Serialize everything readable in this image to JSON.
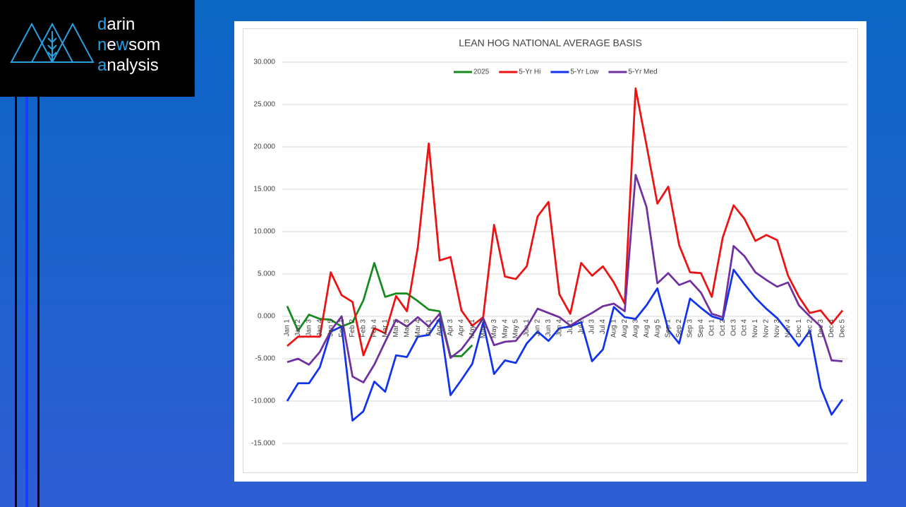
{
  "logo": {
    "lines": [
      [
        "d",
        "arin"
      ],
      [
        "n",
        "e",
        "w",
        "som"
      ],
      [
        "a",
        "nalysis"
      ]
    ]
  },
  "chart_data": {
    "type": "line",
    "title": "LEAN HOG NATIONAL AVERAGE BASIS",
    "categories": [
      "Jan 1",
      "Jan 2",
      "Jan 3",
      "Jan 4",
      "Jan 5",
      "Feb 1",
      "Feb 2",
      "Feb 3",
      "Feb 4",
      "Mar 1",
      "Mar 2",
      "Mar 3",
      "Mar 4",
      "Apr 1",
      "Apr 2",
      "Apr 3",
      "Apr 4",
      "May 1",
      "May 2",
      "May 3",
      "May 4",
      "May 5",
      "Jun 1",
      "Jun 2",
      "Jun 3",
      "Jun 4",
      "Jul 1",
      "Jul 2",
      "Jul 3",
      "Jul 4",
      "Aug 1",
      "Aug 2",
      "Aug 3",
      "Aug 4",
      "Aug 5",
      "Sep 1",
      "Sep 2",
      "Sep 3",
      "Sep 4",
      "Oct 1",
      "Oct 2",
      "Oct 3",
      "Oct 4",
      "Nov 1",
      "Nov 2",
      "Nov 3",
      "Nov 4",
      "Dec 1",
      "Dec 2",
      "Dec 3",
      "Dec 4",
      "Dec 5"
    ],
    "series": [
      {
        "name": "2025",
        "color": "#158a1e",
        "values": [
          1.2,
          -1.7,
          0.2,
          -0.3,
          -0.4,
          -1.2,
          -0.7,
          1.9,
          6.3,
          2.3,
          2.7,
          2.7,
          1.8,
          0.8,
          0.6,
          -4.7,
          -4.7,
          -3.4,
          null,
          null,
          null,
          null,
          null,
          null,
          null,
          null,
          null,
          null,
          null,
          null,
          null,
          null,
          null,
          null,
          null,
          null,
          null,
          null,
          null,
          null,
          null,
          null,
          null,
          null,
          null,
          null,
          null,
          null,
          null,
          null,
          null,
          null
        ]
      },
      {
        "name": "5-Yr Hi",
        "color": "#ee1111",
        "values": [
          -3.5,
          -2.4,
          -2.4,
          -2.4,
          5.2,
          2.5,
          1.7,
          -4.6,
          -1.4,
          -2.0,
          2.4,
          0.6,
          8.2,
          20.4,
          6.6,
          7.0,
          0.7,
          -1.1,
          -0.1,
          10.8,
          4.7,
          4.4,
          5.9,
          11.8,
          13.5,
          2.6,
          0.3,
          6.3,
          4.8,
          5.9,
          4.0,
          1.5,
          26.9,
          20.2,
          13.3,
          15.3,
          8.4,
          5.2,
          5.1,
          2.3,
          9.3,
          13.1,
          11.5,
          8.9,
          9.6,
          9.0,
          4.8,
          2.3,
          0.4,
          0.7,
          -0.9,
          0.7
        ]
      },
      {
        "name": "5-Yr Low",
        "color": "#1133ee",
        "values": [
          -10.0,
          -7.9,
          -7.9,
          -6.0,
          -1.8,
          -1.2,
          -12.3,
          -11.2,
          -7.7,
          -8.9,
          -4.6,
          -4.8,
          -2.4,
          -2.2,
          -0.3,
          -9.3,
          -7.5,
          -5.6,
          -0.7,
          -6.8,
          -5.2,
          -5.5,
          -3.2,
          -1.8,
          -2.9,
          -1.4,
          -1.2,
          -0.7,
          -5.3,
          -3.9,
          1.1,
          -0.1,
          -0.3,
          1.3,
          3.3,
          -1.6,
          -3.2,
          2.1,
          1.0,
          0.0,
          -0.4,
          5.5,
          3.8,
          2.2,
          0.9,
          -0.2,
          -1.8,
          -3.5,
          -1.7,
          -8.4,
          -11.6,
          -9.8
        ]
      },
      {
        "name": "5-Yr Med",
        "color": "#7030a0",
        "values": [
          -5.4,
          -5.0,
          -5.7,
          -4.2,
          -1.7,
          0.0,
          -7.1,
          -7.8,
          -5.7,
          -3.0,
          -0.4,
          -1.2,
          -0.1,
          -1.2,
          0.3,
          -4.9,
          -3.9,
          -2.2,
          -0.2,
          -3.4,
          -3.0,
          -2.9,
          -1.3,
          0.9,
          0.4,
          -0.1,
          -1.1,
          -0.3,
          0.4,
          1.2,
          1.5,
          0.6,
          16.7,
          12.9,
          3.9,
          5.1,
          3.7,
          4.2,
          2.8,
          0.3,
          -0.1,
          8.3,
          7.1,
          5.2,
          4.3,
          3.5,
          4.0,
          1.3,
          0.0,
          -1.2,
          -5.2,
          -5.3
        ]
      }
    ],
    "ylim": [
      -18,
      32
    ],
    "yticks": [
      {
        "value": -15,
        "label": "-15.000"
      },
      {
        "value": -10,
        "label": "-10.000"
      },
      {
        "value": -5,
        "label": "-5.000"
      },
      {
        "value": 0,
        "label": "0.000"
      },
      {
        "value": 5,
        "label": "5.000"
      },
      {
        "value": 10,
        "label": "10.000"
      },
      {
        "value": 15,
        "label": "15.000"
      },
      {
        "value": 20,
        "label": "20.000"
      },
      {
        "value": 25,
        "label": "25.000"
      },
      {
        "value": 30,
        "label": "30.000"
      }
    ],
    "grid": true,
    "legend": "top"
  }
}
